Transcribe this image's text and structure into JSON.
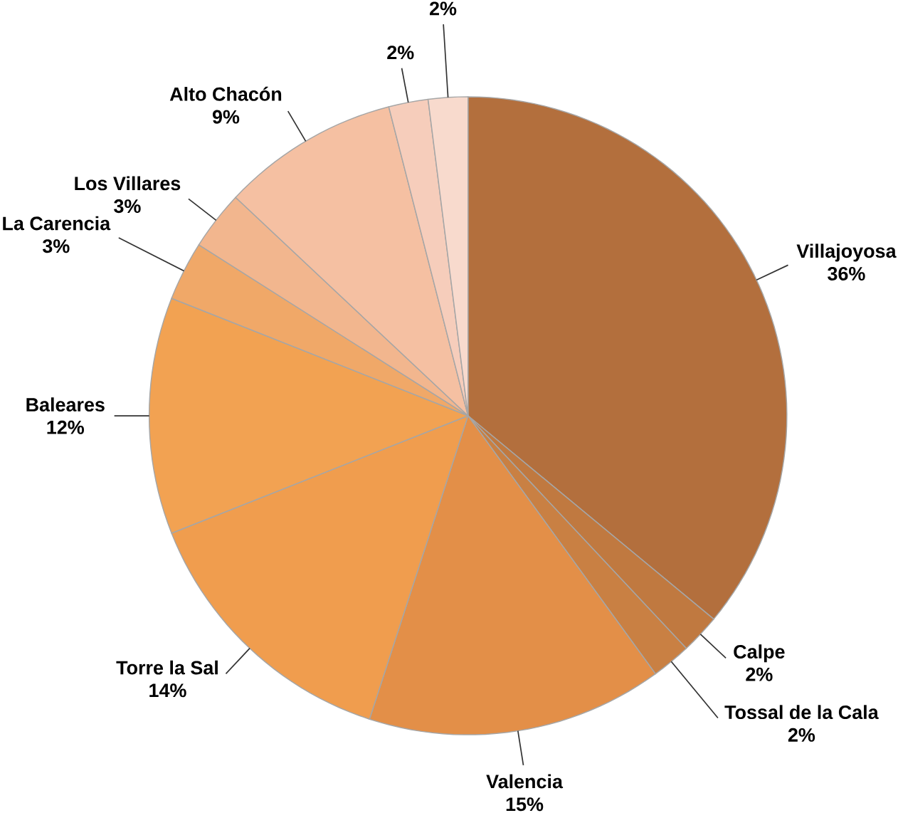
{
  "chart_data": {
    "type": "pie",
    "categories": [
      "Villajoyosa",
      "Calpe",
      "Tossal de la Cala",
      "Valencia",
      "Torre la Sal",
      "Baleares",
      "La Carencia",
      "Los Villares",
      "Alto Chacón",
      null,
      null
    ],
    "values": [
      36,
      2,
      2,
      15,
      14,
      12,
      3,
      3,
      9,
      2,
      2
    ],
    "value_labels": [
      "36%",
      "2%",
      "2%",
      "15%",
      "14%",
      "12%",
      "3%",
      "3%",
      "9%",
      "2%",
      "2%"
    ],
    "colors": [
      "#b36f3d",
      "#c07940",
      "#c98043",
      "#e38f48",
      "#f09d4e",
      "#f2a252",
      "#f0a868",
      "#f2b68e",
      "#f5c0a2",
      "#f6cdbb",
      "#f8dacd"
    ]
  }
}
